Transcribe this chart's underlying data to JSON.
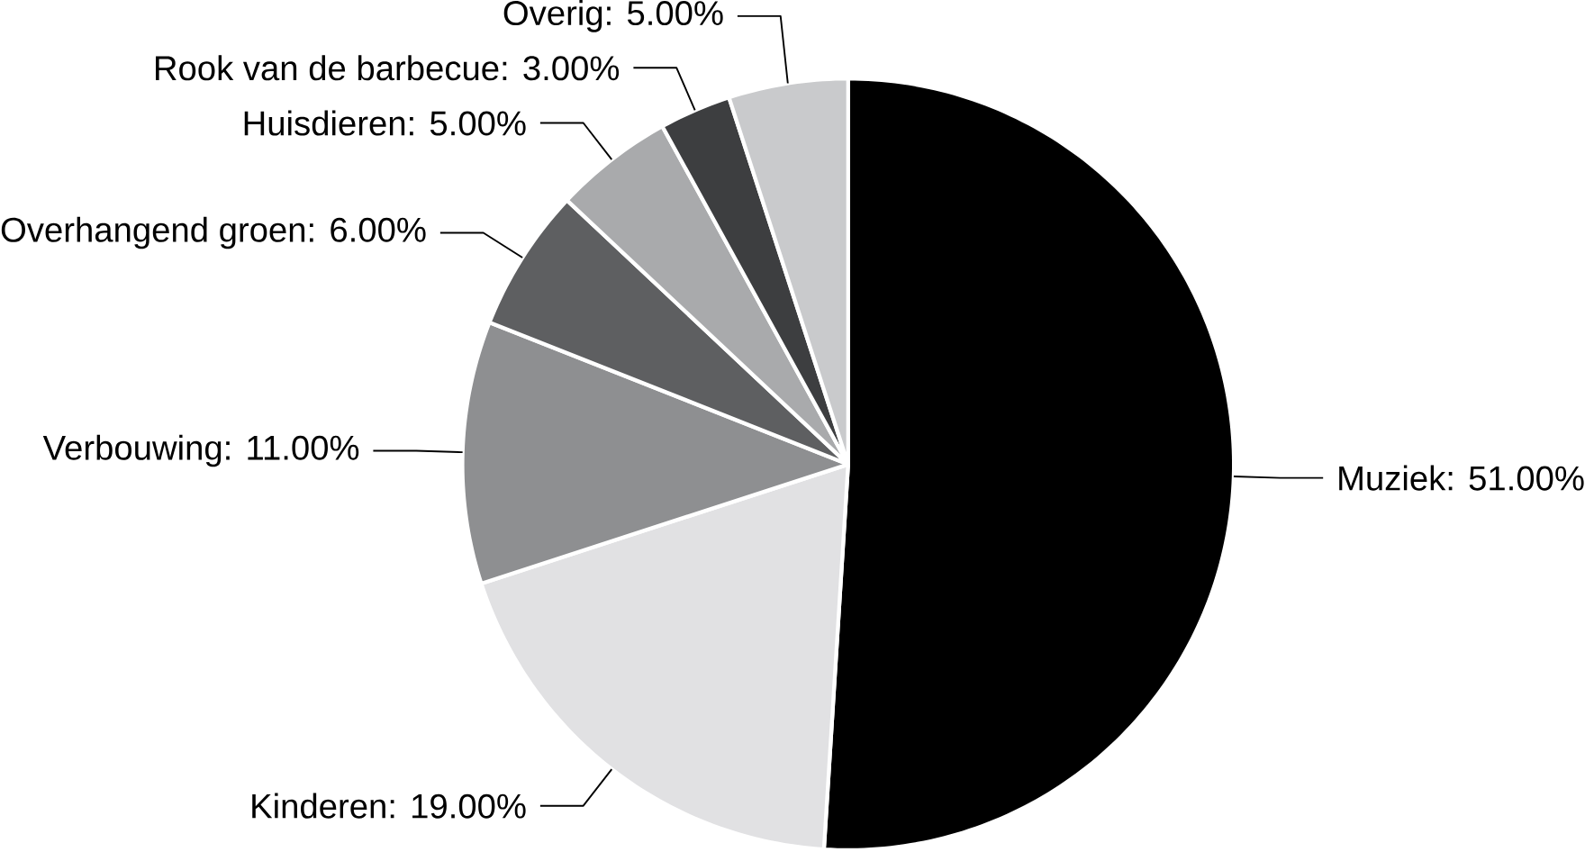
{
  "chart_data": {
    "type": "pie",
    "categories": [
      "Muziek: 51.00%",
      "Kinderen: 19.00%",
      "Verbouwing: 11.00%",
      "Overhangend groen: 6.00%",
      "Huisdieren: 5.00%",
      "Rook van de barbecue: 3.00%",
      "Overig: 5.00%"
    ],
    "values": [
      51,
      19,
      11,
      6,
      5,
      3,
      5
    ],
    "colors": [
      "#000000",
      "#e1e1e3",
      "#8e8f91",
      "#5e5f61",
      "#a9aaac",
      "#3d3e40",
      "#c9cacc"
    ]
  }
}
